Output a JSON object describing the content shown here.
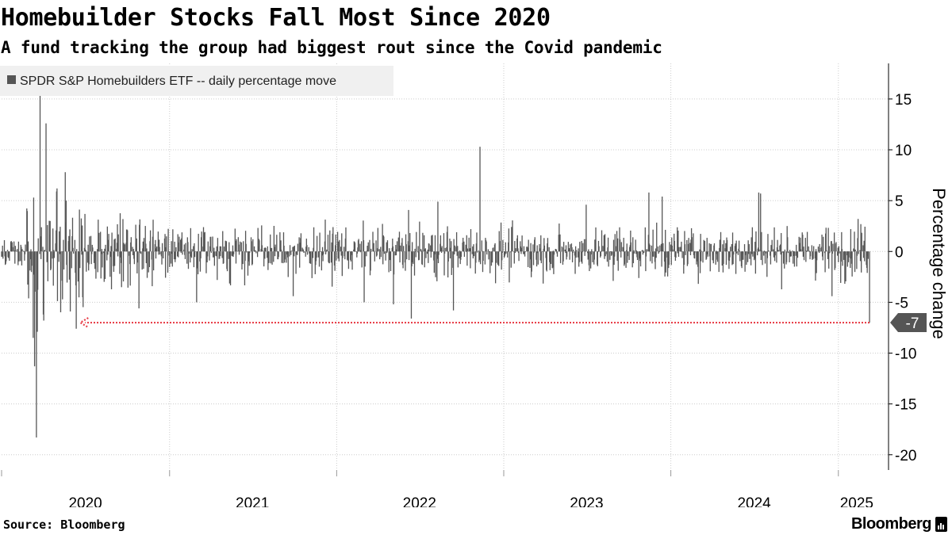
{
  "header": {
    "title": "Homebuilder Stocks Fall Most Since 2020",
    "subtitle": "A fund tracking the group had biggest rout since the Covid pandemic"
  },
  "footer": {
    "source": "Source: Bloomberg",
    "brand": "Bloomberg"
  },
  "colors": {
    "bar": "#555555",
    "grid": "#cccccc",
    "arrow": "#e8414b",
    "legend_bg": "#f0f0f0",
    "label_box": "#555555",
    "axis": "#000000"
  },
  "chart_data": {
    "type": "bar",
    "title": "Homebuilder Stocks Fall Most Since 2020",
    "xlabel": "",
    "ylabel": "Percentage change",
    "ylim": [
      -21.5,
      18.5
    ],
    "yticks": [
      15,
      10,
      5,
      0,
      -5,
      -10,
      -15,
      -20
    ],
    "ytick_labels": [
      "15",
      "10",
      "5",
      "0",
      "-5",
      "-10",
      "-15",
      "-20"
    ],
    "x_range": [
      "2019-12-31",
      "2025-03-10"
    ],
    "xtick_labels": [
      "2020",
      "2021",
      "2022",
      "2023",
      "2024",
      "2025"
    ],
    "xtick_dates": [
      "2020-07-01",
      "2021-07-01",
      "2022-07-01",
      "2023-07-01",
      "2024-07-01",
      "2025-02-10"
    ],
    "year_grid_dates": [
      "2021-01-01",
      "2022-01-01",
      "2023-01-01",
      "2024-01-01",
      "2025-01-01"
    ],
    "legend": {
      "label": "SPDR S&P Homebuilders ETF -- daily percentage move",
      "placement": "top-left"
    },
    "grid": true,
    "series": [
      {
        "name": "SPDR S&P Homebuilders ETF -- daily percentage move",
        "frequency": "trading days",
        "notable_values": [
          {
            "date": "2020-03-16",
            "value": -18.3
          },
          {
            "date": "2020-03-12",
            "value": -11.3
          },
          {
            "date": "2020-03-09",
            "value": -8.5
          },
          {
            "date": "2020-03-24",
            "value": 15.5
          },
          {
            "date": "2020-04-06",
            "value": 12.6
          },
          {
            "date": "2020-03-10",
            "value": 5.3
          },
          {
            "date": "2020-03-18",
            "value": -7.9
          },
          {
            "date": "2020-04-01",
            "value": -6.8
          },
          {
            "date": "2020-05-18",
            "value": 7.8
          },
          {
            "date": "2020-06-11",
            "value": -7.6
          },
          {
            "date": "2020-10-26",
            "value": -5.6
          },
          {
            "date": "2021-03-01",
            "value": -5.0
          },
          {
            "date": "2021-09-28",
            "value": -4.4
          },
          {
            "date": "2022-03-02",
            "value": -5.0
          },
          {
            "date": "2022-05-05",
            "value": -5.2
          },
          {
            "date": "2022-06-13",
            "value": -6.6
          },
          {
            "date": "2022-09-13",
            "value": -5.8
          },
          {
            "date": "2022-11-10",
            "value": 10.3
          },
          {
            "date": "2022-08-10",
            "value": 4.9
          },
          {
            "date": "2023-06-30",
            "value": 4.6
          },
          {
            "date": "2023-11-14",
            "value": 5.8
          },
          {
            "date": "2023-12-13",
            "value": 5.4
          },
          {
            "date": "2024-07-11",
            "value": 5.8
          },
          {
            "date": "2024-07-15",
            "value": 5.7
          },
          {
            "date": "2024-12-18",
            "value": -4.4
          },
          {
            "date": "2025-02-13",
            "value": 3.2
          },
          {
            "date": "2025-03-10",
            "value": -7.0
          }
        ]
      }
    ],
    "annotations": [
      {
        "type": "arrow",
        "from_date": "2025-03-10",
        "to_date": "2020-06-20",
        "value": -7.0
      },
      {
        "type": "value_label",
        "value": -7.0,
        "text": "-7"
      }
    ]
  }
}
